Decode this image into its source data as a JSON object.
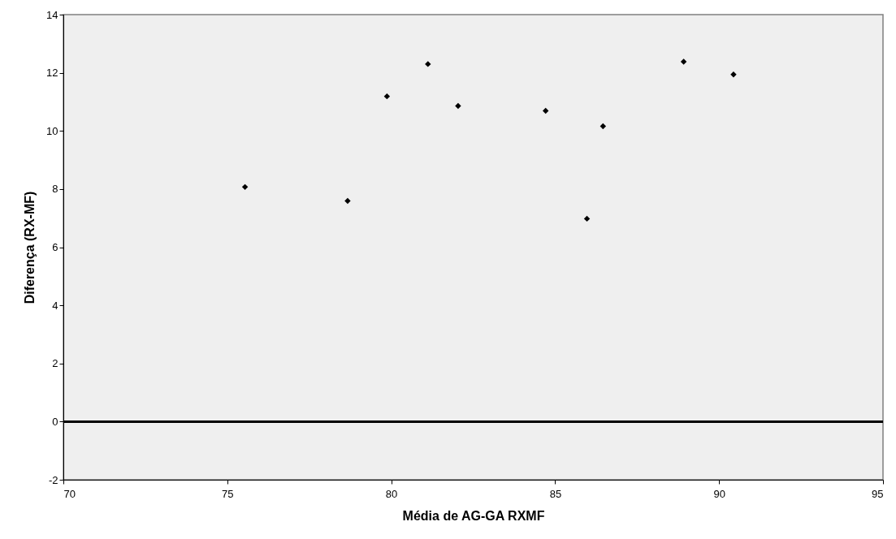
{
  "chart_data": {
    "type": "scatter",
    "xlabel": "Média de AG-GA RXMF",
    "ylabel": "Diferença (RX-MF)",
    "x": [
      75.54,
      78.67,
      79.87,
      81.12,
      82.04,
      84.71,
      86.46,
      85.97,
      88.92,
      90.44
    ],
    "series": [
      {
        "color": "#000000",
        "values": [
          8.07,
          7.59,
          11.19,
          12.3,
          10.86,
          10.69,
          10.16,
          6.98,
          12.38,
          11.94
        ]
      }
    ],
    "xlim": [
      70,
      95
    ],
    "xticks": [
      70,
      75,
      80,
      85,
      90,
      95
    ],
    "ylim": [
      -2,
      14
    ],
    "yticks": [
      -2,
      0,
      2,
      4,
      6,
      8,
      10,
      12,
      14
    ],
    "grid": false,
    "marker": "diamond",
    "ref_lines": [
      {
        "axis": "y",
        "value": 0,
        "color": "#000000"
      }
    ]
  }
}
